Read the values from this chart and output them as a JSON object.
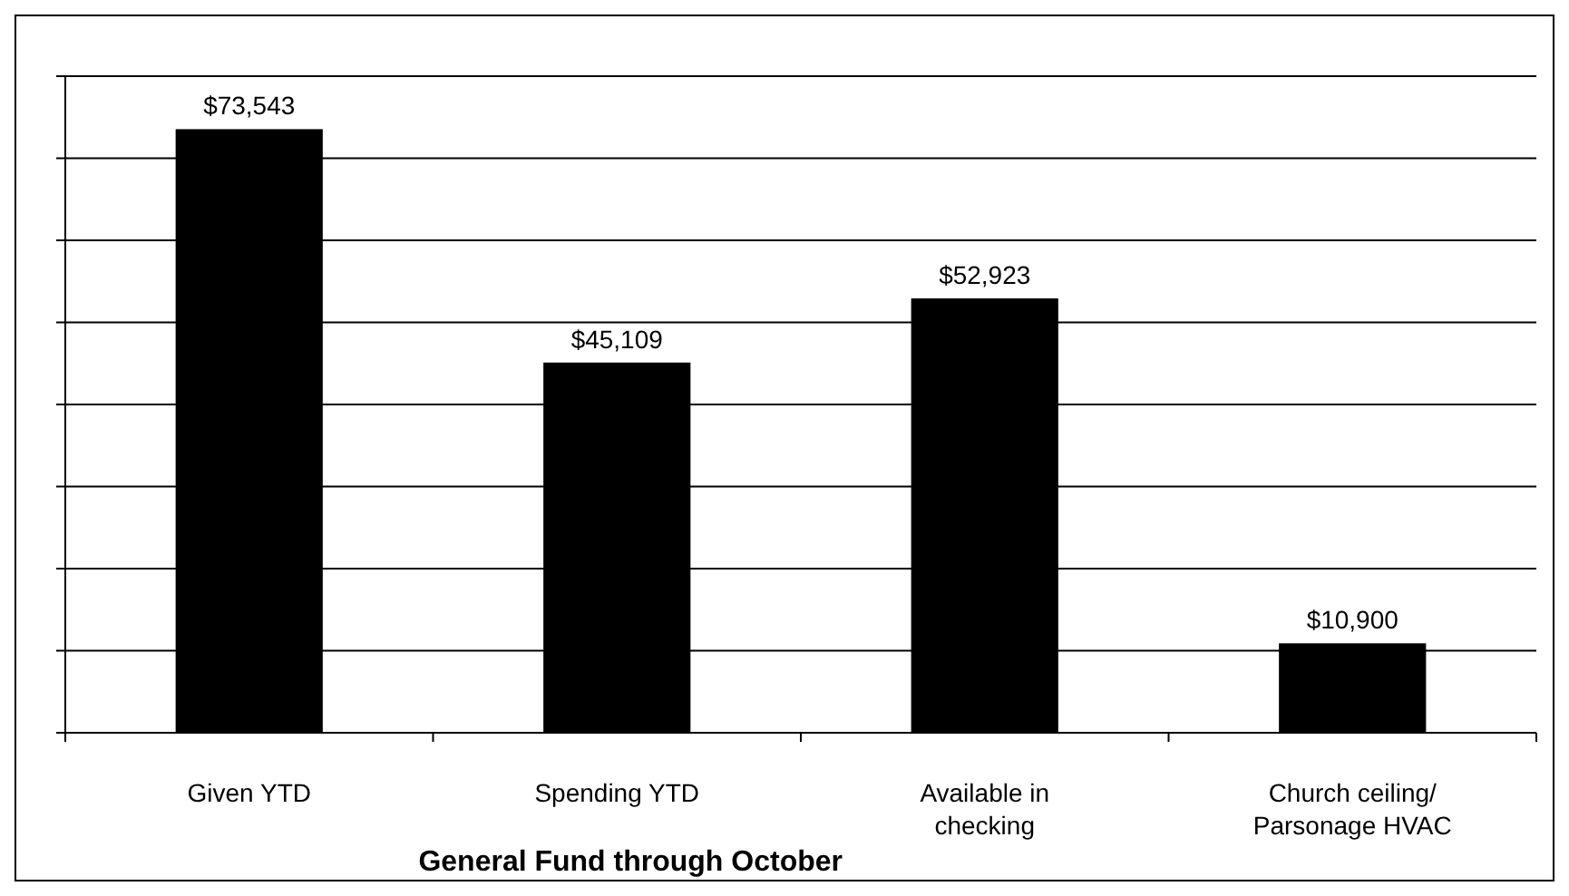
{
  "chart_data": {
    "type": "bar",
    "title": "General Fund through October",
    "categories": [
      "Given YTD",
      "Spending YTD",
      "Available in checking",
      "Church ceiling/ Parsonage HVAC"
    ],
    "values": [
      73543,
      45109,
      52923,
      10900
    ],
    "value_labels": [
      "$73,543",
      "$45,109",
      "$52,923",
      "$10,900"
    ],
    "color": "#000000",
    "ylim": [
      0,
      80000
    ],
    "yticks": [
      {
        "value": 0,
        "label": null
      },
      {
        "value": 10000,
        "label": null
      },
      {
        "value": 20000,
        "label": null
      },
      {
        "value": 30000,
        "label": null
      },
      {
        "value": 40000,
        "label": null
      },
      {
        "value": 50000,
        "label": null
      },
      {
        "value": 60000,
        "label": null
      },
      {
        "value": 70000,
        "label": null
      },
      {
        "value": 80000,
        "label": null
      }
    ],
    "grid": "y",
    "tick_labels": "x"
  }
}
